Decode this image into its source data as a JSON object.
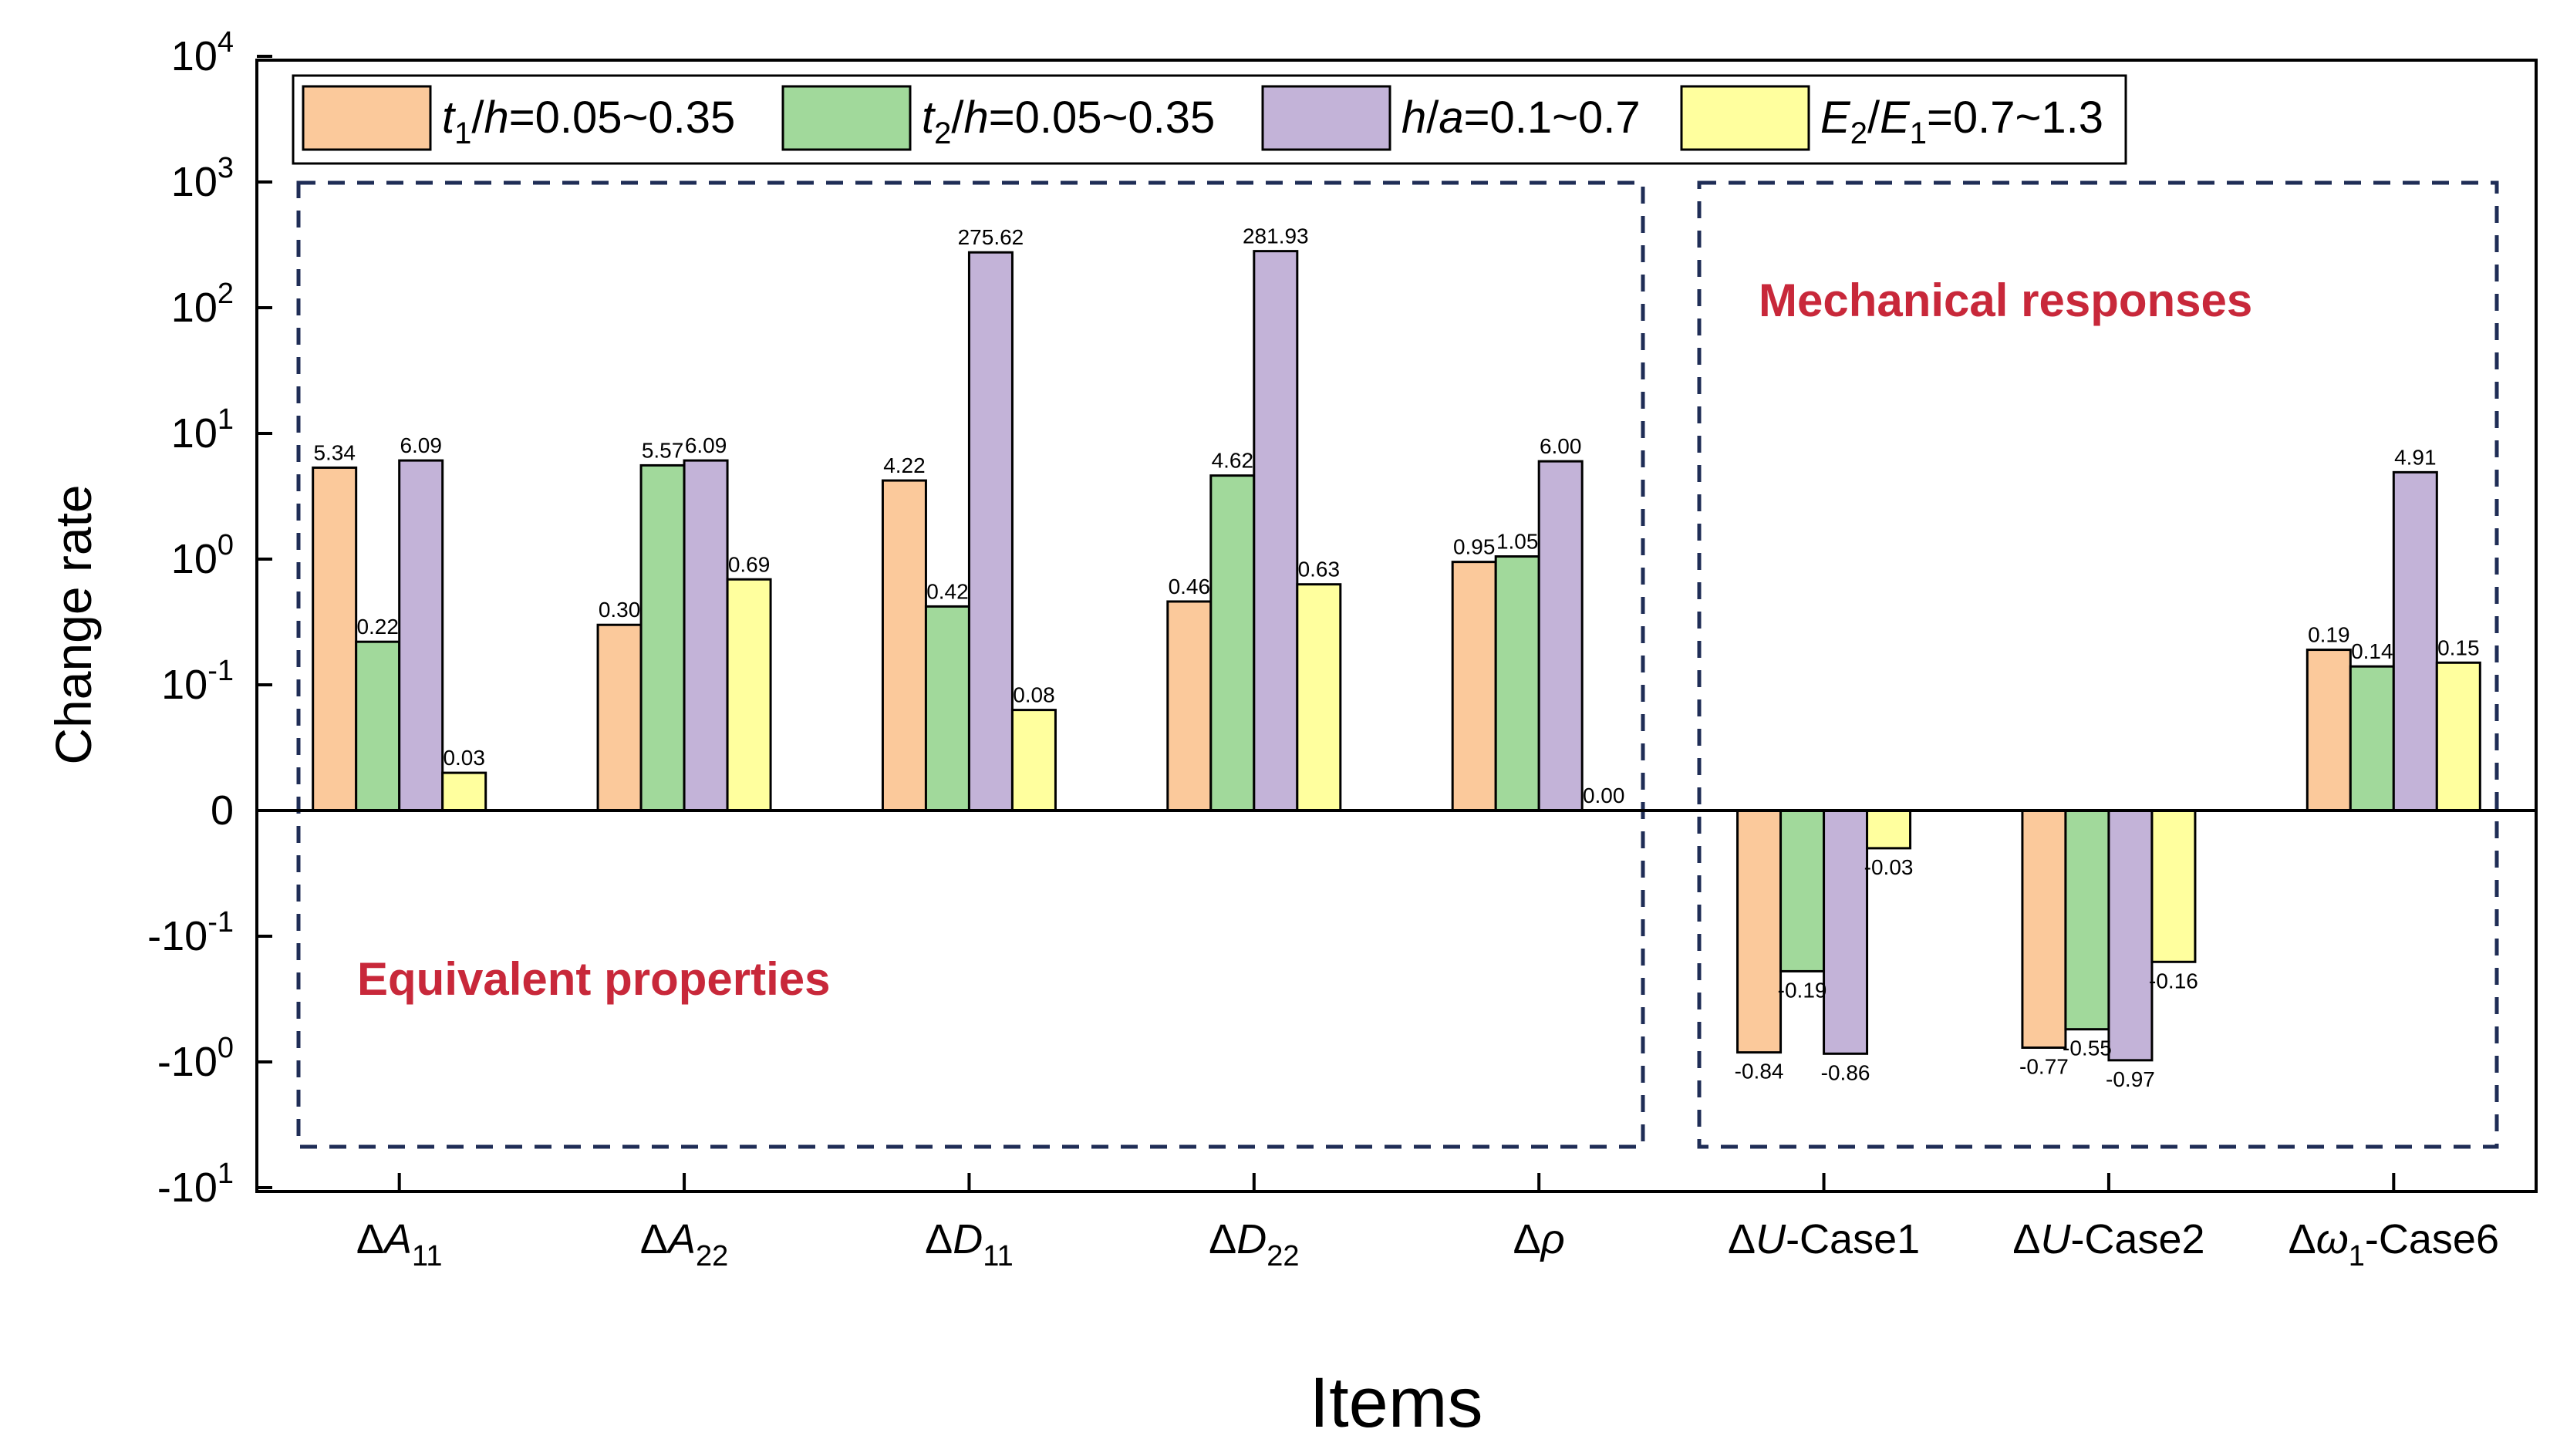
{
  "chart_data": {
    "type": "bar",
    "ylabel": "Change rate",
    "xlabel": "Items",
    "yscale": "symlog",
    "yticks": [
      {
        "base": "-10",
        "exp": "1"
      },
      {
        "base": "-10",
        "exp": "0"
      },
      {
        "base": "-10",
        "exp": "-1"
      },
      {
        "base": "0",
        "exp": ""
      },
      {
        "base": "10",
        "exp": "-1"
      },
      {
        "base": "10",
        "exp": "0"
      },
      {
        "base": "10",
        "exp": "1"
      },
      {
        "base": "10",
        "exp": "2"
      },
      {
        "base": "10",
        "exp": "3"
      },
      {
        "base": "10",
        "exp": "4"
      }
    ],
    "categories": [
      {
        "prefix": "Δ",
        "sym": "A",
        "sub": "11",
        "suffix": ""
      },
      {
        "prefix": "Δ",
        "sym": "A",
        "sub": "22",
        "suffix": ""
      },
      {
        "prefix": "Δ",
        "sym": "D",
        "sub": "11",
        "suffix": ""
      },
      {
        "prefix": "Δ",
        "sym": "D",
        "sub": "22",
        "suffix": ""
      },
      {
        "prefix": "Δ",
        "sym": "ρ",
        "sub": "",
        "suffix": ""
      },
      {
        "prefix": "Δ",
        "sym": "U",
        "sub": "",
        "suffix": "-Case1"
      },
      {
        "prefix": "Δ",
        "sym": "U",
        "sub": "",
        "suffix": "-Case2"
      },
      {
        "prefix": "Δ",
        "sym": "ω",
        "sub": "1",
        "suffix": "-Case6"
      }
    ],
    "series": [
      {
        "name": "t1/h=0.05~0.35",
        "legend": [
          {
            "t": "t",
            "i": true
          },
          {
            "t": "1",
            "sub": true
          },
          {
            "t": "/"
          },
          {
            "t": "h",
            "i": true
          },
          {
            "t": "=0.05~0.35"
          }
        ],
        "color": "#fbc99b",
        "values": [
          5.34,
          0.3,
          4.22,
          0.46,
          0.95,
          -0.84,
          -0.77,
          0.19
        ],
        "labels": [
          "5.34",
          "0.30",
          "4.22",
          "0.46",
          "0.95",
          "-0.84",
          "-0.77",
          "0.19"
        ]
      },
      {
        "name": "t2/h=0.05~0.35",
        "legend": [
          {
            "t": "t",
            "i": true
          },
          {
            "t": "2",
            "sub": true
          },
          {
            "t": "/"
          },
          {
            "t": "h",
            "i": true
          },
          {
            "t": "=0.05~0.35"
          }
        ],
        "color": "#a1d99b",
        "values": [
          0.22,
          5.57,
          0.42,
          4.62,
          1.05,
          -0.19,
          -0.55,
          0.14
        ],
        "labels": [
          "0.22",
          "5.57",
          "0.42",
          "4.62",
          "1.05",
          "-0.19",
          "-0.55",
          "0.14"
        ]
      },
      {
        "name": "h/a=0.1~0.7",
        "legend": [
          {
            "t": "h",
            "i": true
          },
          {
            "t": "/"
          },
          {
            "t": "a",
            "i": true
          },
          {
            "t": "=0.1~0.7"
          }
        ],
        "color": "#c3b3d8",
        "values": [
          6.09,
          6.09,
          275.62,
          281.93,
          6.0,
          -0.86,
          -0.97,
          4.91
        ],
        "labels": [
          "6.09",
          "6.09",
          "275.62",
          "281.93",
          "6.00",
          "-0.86",
          "-0.97",
          "4.91"
        ]
      },
      {
        "name": "E2/E1=0.7~1.3",
        "legend": [
          {
            "t": "E",
            "i": true
          },
          {
            "t": "2",
            "sub": true
          },
          {
            "t": "/"
          },
          {
            "t": "E",
            "i": true
          },
          {
            "t": "1",
            "sub": true
          },
          {
            "t": "=0.7~1.3"
          }
        ],
        "color": "#ffff9e",
        "values": [
          0.03,
          0.69,
          0.08,
          0.63,
          0.0,
          -0.03,
          -0.16,
          0.15
        ],
        "labels": [
          "0.03",
          "0.69",
          "0.08",
          "0.63",
          "0.00",
          "-0.03",
          "-0.16",
          "0.15"
        ]
      }
    ],
    "regions": [
      {
        "label": "Equivalent properties",
        "from": 0,
        "to": 4
      },
      {
        "label": "Mechanical responses",
        "from": 5,
        "to": 7
      }
    ],
    "legend_position": "top-left"
  }
}
